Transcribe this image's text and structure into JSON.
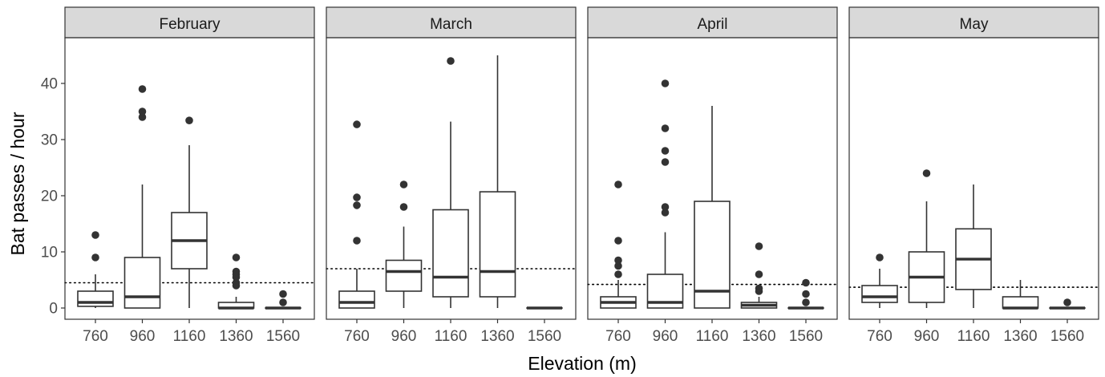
{
  "chart_data": {
    "type": "boxplot",
    "xlabel": "Elevation (m)",
    "ylabel": "Bat passes / hour",
    "categories": [
      "760",
      "960",
      "1160",
      "1360",
      "1560"
    ],
    "y_ticks": [
      0,
      10,
      20,
      30,
      40
    ],
    "ylim": [
      -2,
      47
    ],
    "grid": false,
    "panels": [
      {
        "name": "February",
        "reference_line": 4.5,
        "boxes": [
          {
            "x": "760",
            "whisker_low": 0,
            "q1": 0.3,
            "median": 1,
            "q3": 3,
            "whisker_high": 6,
            "outliers": [
              9,
              13
            ]
          },
          {
            "x": "960",
            "whisker_low": 0,
            "q1": 0,
            "median": 2,
            "q3": 9,
            "whisker_high": 22,
            "outliers": [
              34,
              35,
              39
            ]
          },
          {
            "x": "1160",
            "whisker_low": 0,
            "q1": 7,
            "median": 12,
            "q3": 17,
            "whisker_high": 29,
            "outliers": [
              33.4
            ]
          },
          {
            "x": "1360",
            "whisker_low": 0,
            "q1": 0,
            "median": 0,
            "q3": 1,
            "whisker_high": 2,
            "outliers": [
              4,
              4.5,
              5.5,
              6,
              6.5,
              9
            ]
          },
          {
            "x": "1560",
            "whisker_low": 0,
            "q1": 0,
            "median": 0,
            "q3": 0,
            "whisker_high": 0,
            "outliers": [
              1,
              2.5
            ]
          }
        ]
      },
      {
        "name": "March",
        "reference_line": 7,
        "boxes": [
          {
            "x": "760",
            "whisker_low": 0,
            "q1": 0,
            "median": 1,
            "q3": 3,
            "whisker_high": 7,
            "outliers": [
              12,
              18.3,
              19.7,
              32.7
            ]
          },
          {
            "x": "960",
            "whisker_low": 0,
            "q1": 3,
            "median": 6.5,
            "q3": 8.5,
            "whisker_high": 14.5,
            "outliers": [
              18,
              22
            ]
          },
          {
            "x": "1160",
            "whisker_low": 0,
            "q1": 2,
            "median": 5.5,
            "q3": 17.5,
            "whisker_high": 33.2,
            "outliers": [
              44
            ]
          },
          {
            "x": "1360",
            "whisker_low": 0,
            "q1": 2,
            "median": 6.5,
            "q3": 20.7,
            "whisker_high": 45,
            "outliers": []
          },
          {
            "x": "1560",
            "whisker_low": 0,
            "q1": 0,
            "median": 0,
            "q3": 0,
            "whisker_high": 0,
            "outliers": []
          }
        ]
      },
      {
        "name": "April",
        "reference_line": 4.2,
        "boxes": [
          {
            "x": "760",
            "whisker_low": 0,
            "q1": 0,
            "median": 1,
            "q3": 2,
            "whisker_high": 5,
            "outliers": [
              6,
              7.5,
              8.5,
              12,
              22
            ]
          },
          {
            "x": "960",
            "whisker_low": 0,
            "q1": 0,
            "median": 1,
            "q3": 6,
            "whisker_high": 13.5,
            "outliers": [
              17,
              18,
              26,
              28,
              32,
              40
            ]
          },
          {
            "x": "1160",
            "whisker_low": 0,
            "q1": 0,
            "median": 3,
            "q3": 19,
            "whisker_high": 36,
            "outliers": []
          },
          {
            "x": "1360",
            "whisker_low": 0,
            "q1": 0,
            "median": 0.5,
            "q3": 1,
            "whisker_high": 2,
            "outliers": [
              3,
              3.5,
              6,
              11
            ]
          },
          {
            "x": "1560",
            "whisker_low": 0,
            "q1": 0,
            "median": 0,
            "q3": 0,
            "whisker_high": 0,
            "outliers": [
              1,
              2.5,
              4.5
            ]
          }
        ]
      },
      {
        "name": "May",
        "reference_line": 3.7,
        "boxes": [
          {
            "x": "760",
            "whisker_low": 0,
            "q1": 1,
            "median": 2,
            "q3": 4,
            "whisker_high": 7,
            "outliers": [
              9
            ]
          },
          {
            "x": "960",
            "whisker_low": 0,
            "q1": 1,
            "median": 5.5,
            "q3": 10,
            "whisker_high": 19,
            "outliers": [
              24
            ]
          },
          {
            "x": "1160",
            "whisker_low": 0,
            "q1": 3.3,
            "median": 8.7,
            "q3": 14.1,
            "whisker_high": 22,
            "outliers": []
          },
          {
            "x": "1360",
            "whisker_low": 0,
            "q1": 0,
            "median": 0,
            "q3": 2,
            "whisker_high": 5,
            "outliers": []
          },
          {
            "x": "1560",
            "whisker_low": 0,
            "q1": 0,
            "median": 0,
            "q3": 0,
            "whisker_high": 0,
            "outliers": [
              1
            ]
          }
        ]
      }
    ]
  }
}
